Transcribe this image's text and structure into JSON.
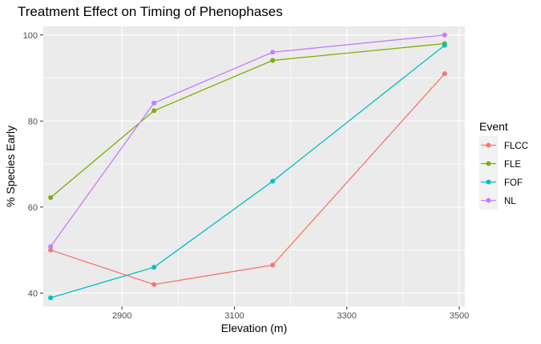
{
  "chart_data": {
    "type": "line",
    "title": "Treatment Effect on Timing of Phenophases",
    "xlabel": "Elevation (m)",
    "ylabel": "% Species Early",
    "x_ticks": [
      2900,
      3100,
      3300,
      3500
    ],
    "y_ticks": [
      40,
      60,
      80,
      100
    ],
    "xlim": [
      2760,
      3510
    ],
    "ylim": [
      36.9,
      102
    ],
    "grid": true,
    "legend": {
      "title": "Event",
      "placement": "right"
    },
    "x": [
      2773,
      2957,
      3168,
      3474
    ],
    "series": [
      {
        "name": "FLCC",
        "color": "#F8766D",
        "values": [
          50.0,
          42.0,
          46.5,
          91.0
        ]
      },
      {
        "name": "FLE",
        "color": "#7CAE00",
        "values": [
          62.2,
          82.4,
          94.1,
          98.0
        ]
      },
      {
        "name": "FOF",
        "color": "#00BFC4",
        "values": [
          38.9,
          46.0,
          66.0,
          97.6
        ]
      },
      {
        "name": "NL",
        "color": "#C77CFF",
        "values": [
          50.8,
          84.2,
          96.0,
          100.0
        ]
      }
    ]
  }
}
